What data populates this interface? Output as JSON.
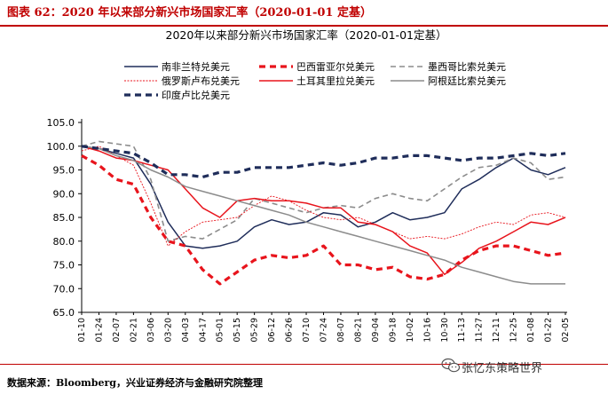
{
  "figure": {
    "title": "图表 62：2020 年以来部分新兴市场国家汇率（2020-01-01 定基）",
    "source": "数据来源：Bloomberg，兴业证券经济与金融研究院整理",
    "watermark": "张忆东策略世界",
    "watermark_icon": "wechat-icon"
  },
  "chart_data": {
    "type": "line",
    "title": "2020年以来部分新兴市场国家汇率（2020-01-01定基）",
    "xlabel": "",
    "ylabel": "",
    "ylim": [
      65,
      105
    ],
    "yticks": [
      "105.0",
      "100.0",
      "95.0",
      "90.0",
      "85.0",
      "80.0",
      "75.0",
      "70.0",
      "65.0"
    ],
    "grid": false,
    "legend_position": "top",
    "categories": [
      "01-10",
      "01-24",
      "02-07",
      "02-21",
      "03-06",
      "03-20",
      "04-03",
      "04-17",
      "05-01",
      "05-15",
      "05-29",
      "06-12",
      "06-26",
      "07-10",
      "07-24",
      "08-07",
      "08-21",
      "09-04",
      "09-18",
      "10-02",
      "10-16",
      "10-30",
      "11-13",
      "11-27",
      "12-11",
      "12-25",
      "01-08",
      "01-22",
      "02-05"
    ],
    "series": [
      {
        "name": "南非兰特兑美元",
        "color": "#1f2d5a",
        "style": "solid",
        "values": [
          100.0,
          99.5,
          98.5,
          97.5,
          92.0,
          84.0,
          79.0,
          78.5,
          79.0,
          80.0,
          83.0,
          84.5,
          83.5,
          84.0,
          86.0,
          85.5,
          83.0,
          84.0,
          86.0,
          84.5,
          85.0,
          86.0,
          91.0,
          93.0,
          95.5,
          97.5,
          95.0,
          94.0,
          95.5
        ]
      },
      {
        "name": "巴西雷亚尔兑美元",
        "color": "#e8141c",
        "style": "dash-thick",
        "values": [
          98.0,
          96.0,
          93.0,
          92.0,
          85.0,
          80.0,
          79.0,
          74.0,
          71.0,
          73.5,
          76.0,
          77.0,
          76.5,
          77.0,
          79.0,
          75.0,
          75.0,
          74.0,
          74.5,
          72.5,
          72.0,
          73.0,
          76.0,
          78.0,
          79.0,
          79.0,
          78.0,
          77.0,
          77.5
        ]
      },
      {
        "name": "墨西哥比索兑美元",
        "color": "#8c8c8c",
        "style": "dash",
        "values": [
          100.0,
          101.0,
          100.5,
          100.0,
          93.0,
          80.0,
          81.0,
          80.5,
          82.5,
          84.5,
          89.0,
          88.0,
          87.0,
          86.0,
          87.0,
          87.5,
          87.0,
          89.0,
          90.0,
          89.0,
          88.5,
          91.0,
          93.5,
          95.5,
          96.0,
          97.5,
          96.5,
          93.0,
          93.5
        ]
      },
      {
        "name": "俄罗斯卢布兑美元",
        "color": "#e8141c",
        "style": "dot",
        "values": [
          99.0,
          100.0,
          98.0,
          96.0,
          88.0,
          79.0,
          82.0,
          84.0,
          84.5,
          85.0,
          87.5,
          89.5,
          88.5,
          86.5,
          85.0,
          84.5,
          85.0,
          83.5,
          82.0,
          80.5,
          81.0,
          80.5,
          81.5,
          83.0,
          84.0,
          83.5,
          85.5,
          86.0,
          85.0
        ]
      },
      {
        "name": "土耳其里拉兑美元",
        "color": "#e8141c",
        "style": "solid",
        "values": [
          100.0,
          99.0,
          97.5,
          97.0,
          96.0,
          95.0,
          91.0,
          87.0,
          85.0,
          88.5,
          89.0,
          88.5,
          88.5,
          88.0,
          87.0,
          87.0,
          84.0,
          83.5,
          82.0,
          79.0,
          77.5,
          73.0,
          75.5,
          78.5,
          80.0,
          82.0,
          84.0,
          83.5,
          85.0
        ]
      },
      {
        "name": "阿根廷比索兑美元",
        "color": "#8c8c8c",
        "style": "solid",
        "values": [
          100.0,
          99.5,
          98.0,
          97.0,
          95.0,
          93.5,
          91.5,
          90.5,
          89.5,
          88.5,
          87.5,
          86.5,
          85.5,
          84.0,
          83.0,
          82.0,
          81.0,
          80.0,
          79.0,
          78.0,
          77.0,
          76.0,
          74.5,
          73.5,
          72.5,
          71.5,
          71.0,
          71.0,
          71.0
        ]
      },
      {
        "name": "印度卢比兑美元",
        "color": "#1f2d5a",
        "style": "dash-thick",
        "values": [
          100.0,
          99.5,
          99.0,
          98.5,
          96.5,
          94.0,
          94.0,
          93.5,
          94.5,
          94.5,
          95.5,
          95.5,
          95.5,
          96.0,
          96.5,
          96.0,
          96.5,
          97.5,
          97.5,
          98.0,
          98.0,
          97.5,
          97.0,
          97.5,
          97.5,
          98.0,
          98.5,
          98.0,
          98.5
        ]
      }
    ]
  }
}
